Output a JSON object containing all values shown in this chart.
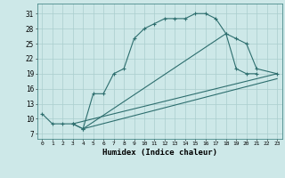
{
  "xlabel": "Humidex (Indice chaleur)",
  "background_color": "#cde8e8",
  "grid_color": "#aacece",
  "line_color": "#2d6e6e",
  "xlim": [
    -0.5,
    23.5
  ],
  "ylim": [
    6.0,
    33.0
  ],
  "yticks": [
    7,
    10,
    13,
    16,
    19,
    22,
    25,
    28,
    31
  ],
  "xticks": [
    0,
    1,
    2,
    3,
    4,
    5,
    6,
    7,
    8,
    9,
    10,
    11,
    12,
    13,
    14,
    15,
    16,
    17,
    18,
    19,
    20,
    21,
    22,
    23
  ],
  "line1_x": [
    0,
    1,
    2,
    3,
    4,
    5,
    6,
    7,
    8,
    9,
    10,
    11,
    12,
    13,
    14,
    15,
    16,
    17,
    18,
    19,
    20,
    21
  ],
  "line1_y": [
    11,
    9,
    9,
    9,
    8,
    15,
    15,
    19,
    20,
    26,
    28,
    29,
    30,
    30,
    30,
    31,
    31,
    30,
    27,
    20,
    19,
    19
  ],
  "line2_x": [
    3,
    4,
    18,
    19,
    20,
    21,
    23
  ],
  "line2_y": [
    9,
    8,
    27,
    26,
    25,
    20,
    19
  ],
  "line3_x": [
    3,
    23
  ],
  "line3_y": [
    9,
    19
  ],
  "line4_x": [
    4,
    23
  ],
  "line4_y": [
    8,
    18
  ]
}
